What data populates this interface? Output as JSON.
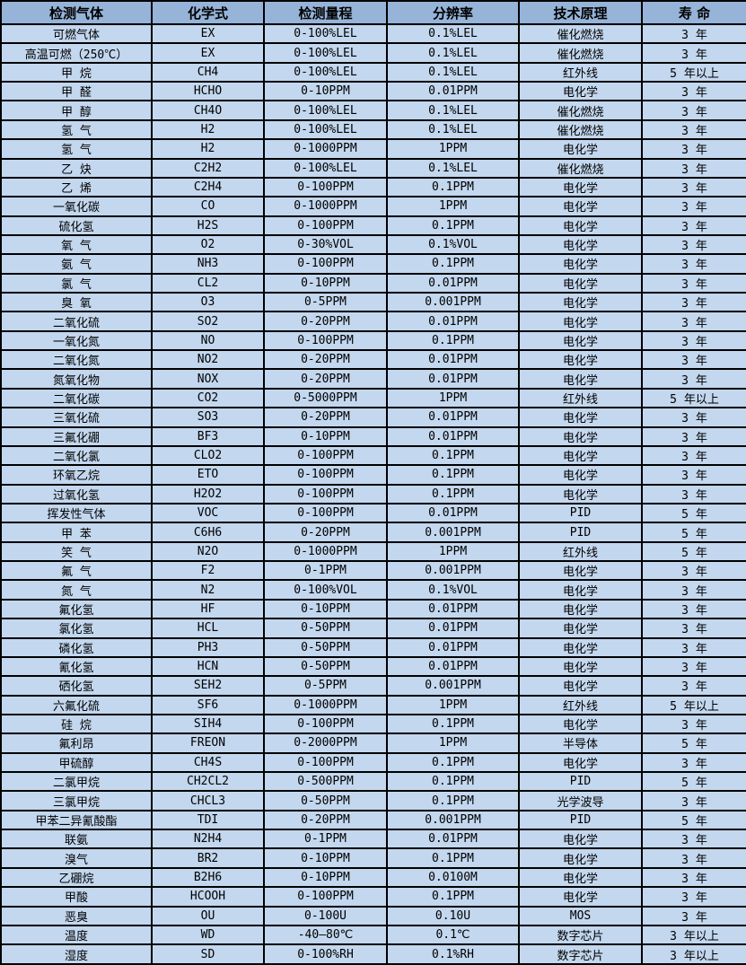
{
  "table": {
    "column_keys": [
      "gas-name",
      "chemical-formula",
      "detection-range",
      "resolution",
      "technology",
      "lifespan"
    ],
    "headers": [
      "检测气体",
      "化学式",
      "检测量程",
      "分辨率",
      "技术原理",
      "寿 命"
    ],
    "rows": [
      [
        "可燃气体",
        "EX",
        "0-100%LEL",
        "0.1%LEL",
        "催化燃烧",
        "3 年"
      ],
      [
        "高温可燃（250℃）",
        "EX",
        "0-100%LEL",
        "0.1%LEL",
        "催化燃烧",
        "3 年"
      ],
      [
        "甲 烷",
        "CH4",
        "0-100%LEL",
        "0.1%LEL",
        "红外线",
        "5 年以上"
      ],
      [
        "甲 醛",
        "HCHO",
        "0-10PPM",
        "0.01PPM",
        "电化学",
        "3 年"
      ],
      [
        "甲 醇",
        "CH4O",
        "0-100%LEL",
        "0.1%LEL",
        "催化燃烧",
        "3 年"
      ],
      [
        "氢 气",
        "H2",
        "0-100%LEL",
        "0.1%LEL",
        "催化燃烧",
        "3 年"
      ],
      [
        "氢 气",
        "H2",
        "0-1000PPM",
        "1PPM",
        "电化学",
        "3 年"
      ],
      [
        "乙 炔",
        "C2H2",
        "0-100%LEL",
        "0.1%LEL",
        "催化燃烧",
        "3 年"
      ],
      [
        "乙 烯",
        "C2H4",
        "0-100PPM",
        "0.1PPM",
        "电化学",
        "3 年"
      ],
      [
        "一氧化碳",
        "CO",
        "0-1000PPM",
        "1PPM",
        "电化学",
        "3 年"
      ],
      [
        "硫化氢",
        "H2S",
        "0-100PPM",
        "0.1PPM",
        "电化学",
        "3 年"
      ],
      [
        "氧 气",
        "O2",
        "0-30%VOL",
        "0.1%VOL",
        "电化学",
        "3 年"
      ],
      [
        "氨 气",
        "NH3",
        "0-100PPM",
        "0.1PPM",
        "电化学",
        "3 年"
      ],
      [
        "氯 气",
        "CL2",
        "0-10PPM",
        "0.01PPM",
        "电化学",
        "3 年"
      ],
      [
        "臭 氧",
        "O3",
        "0-5PPM",
        "0.001PPM",
        "电化学",
        "3 年"
      ],
      [
        "二氧化硫",
        "SO2",
        "0-20PPM",
        "0.01PPM",
        "电化学",
        "3 年"
      ],
      [
        "一氧化氮",
        "NO",
        "0-100PPM",
        "0.1PPM",
        "电化学",
        "3 年"
      ],
      [
        "二氧化氮",
        "NO2",
        "0-20PPM",
        "0.01PPM",
        "电化学",
        "3 年"
      ],
      [
        "氮氧化物",
        "NOX",
        "0-20PPM",
        "0.01PPM",
        "电化学",
        "3 年"
      ],
      [
        "二氧化碳",
        "CO2",
        "0-5000PPM",
        "1PPM",
        "红外线",
        "5 年以上"
      ],
      [
        "三氧化硫",
        "SO3",
        "0-20PPM",
        "0.01PPM",
        "电化学",
        "3 年"
      ],
      [
        "三氟化硼",
        "BF3",
        "0-10PPM",
        "0.01PPM",
        "电化学",
        "3 年"
      ],
      [
        "二氧化氯",
        "CLO2",
        "0-100PPM",
        "0.1PPM",
        "电化学",
        "3 年"
      ],
      [
        "环氧乙烷",
        "ETO",
        "0-100PPM",
        "0.1PPM",
        "电化学",
        "3 年"
      ],
      [
        "过氧化氢",
        "H2O2",
        "0-100PPM",
        "0.1PPM",
        "电化学",
        "3 年"
      ],
      [
        "挥发性气体",
        "VOC",
        "0-100PPM",
        "0.01PPM",
        "PID",
        "5 年"
      ],
      [
        "甲 苯",
        "C6H6",
        "0-20PPM",
        "0.001PPM",
        "PID",
        "5 年"
      ],
      [
        "笑 气",
        "N2O",
        "0-1000PPM",
        "1PPM",
        "红外线",
        "5 年"
      ],
      [
        "氟 气",
        "F2",
        "0-1PPM",
        "0.001PPM",
        "电化学",
        "3 年"
      ],
      [
        "氮 气",
        "N2",
        "0-100%VOL",
        "0.1%VOL",
        "电化学",
        "3 年"
      ],
      [
        "氟化氢",
        "HF",
        "0-10PPM",
        "0.01PPM",
        "电化学",
        "3 年"
      ],
      [
        "氯化氢",
        "HCL",
        "0-50PPM",
        "0.01PPM",
        "电化学",
        "3 年"
      ],
      [
        "磷化氢",
        "PH3",
        "0-50PPM",
        "0.01PPM",
        "电化学",
        "3 年"
      ],
      [
        "氰化氢",
        "HCN",
        "0-50PPM",
        "0.01PPM",
        "电化学",
        "3 年"
      ],
      [
        "硒化氢",
        "SEH2",
        "0-5PPM",
        "0.001PPM",
        "电化学",
        "3 年"
      ],
      [
        "六氟化硫",
        "SF6",
        "0-1000PPM",
        "1PPM",
        "红外线",
        "5 年以上"
      ],
      [
        "硅 烷",
        "SIH4",
        "0-100PPM",
        "0.1PPM",
        "电化学",
        "3 年"
      ],
      [
        "氟利昂",
        "FREON",
        "0-2000PPM",
        "1PPM",
        "半导体",
        "5 年"
      ],
      [
        "甲硫醇",
        "CH4S",
        "0-100PPM",
        "0.1PPM",
        "电化学",
        "3 年"
      ],
      [
        "二氯甲烷",
        "CH2CL2",
        "0-500PPM",
        "0.1PPM",
        "PID",
        "5 年"
      ],
      [
        "三氯甲烷",
        "CHCL3",
        "0-50PPM",
        "0.1PPM",
        "光学波导",
        "3 年"
      ],
      [
        "甲苯二异氰酸酯",
        "TDI",
        "0-20PPM",
        "0.001PPM",
        "PID",
        "5 年"
      ],
      [
        "联氨",
        "N2H4",
        "0-1PPM",
        "0.01PPM",
        "电化学",
        "3 年"
      ],
      [
        "溴气",
        "BR2",
        "0-10PPM",
        "0.1PPM",
        "电化学",
        "3 年"
      ],
      [
        "乙硼烷",
        "B2H6",
        "0-10PPM",
        "0.0100M",
        "电化学",
        "3 年"
      ],
      [
        "甲酸",
        "HCOOH",
        "0-100PPM",
        "0.1PPM",
        "电化学",
        "3 年"
      ],
      [
        "恶臭",
        "OU",
        "0-100U",
        "0.10U",
        "MOS",
        "3 年"
      ],
      [
        "温度",
        "WD",
        "-40—80℃",
        "0.1℃",
        "数字芯片",
        "3 年以上"
      ],
      [
        "湿度",
        "SD",
        "0-100%RH",
        "0.1%RH",
        "数字芯片",
        "3 年以上"
      ]
    ]
  },
  "colors": {
    "header_bg": "#96b3d8",
    "row_bg": "#c3d7ee",
    "border": "#000000",
    "text": "#000000"
  }
}
